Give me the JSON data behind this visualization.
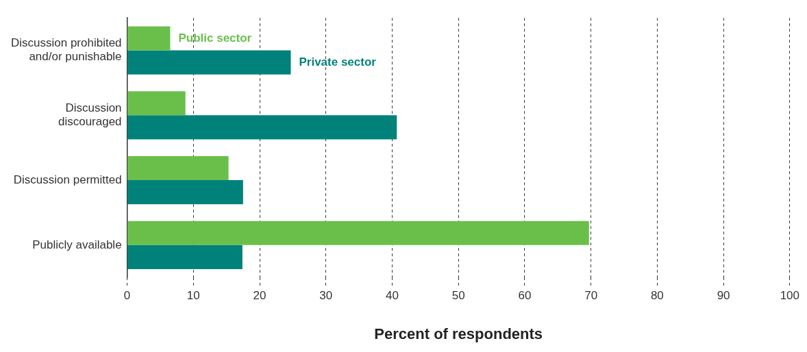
{
  "chart_data": {
    "type": "bar",
    "orientation": "horizontal",
    "xlabel": "Percent of respondents",
    "categories": [
      "Discussion prohibited\nand/or punishable",
      "Discussion\ndiscouraged",
      "Discussion permitted",
      "Publicly available"
    ],
    "series": [
      {
        "name": "Public sector",
        "color": "#6abf4b",
        "values": [
          6.5,
          8.8,
          15.3,
          69.7
        ]
      },
      {
        "name": "Private sector",
        "color": "#00827a",
        "values": [
          24.7,
          40.7,
          17.5,
          17.4
        ]
      }
    ],
    "xlim": [
      0,
      100
    ],
    "xticks": [
      0,
      10,
      20,
      30,
      40,
      50,
      60,
      70,
      80,
      90,
      100
    ],
    "grid": "x",
    "legend": false
  }
}
